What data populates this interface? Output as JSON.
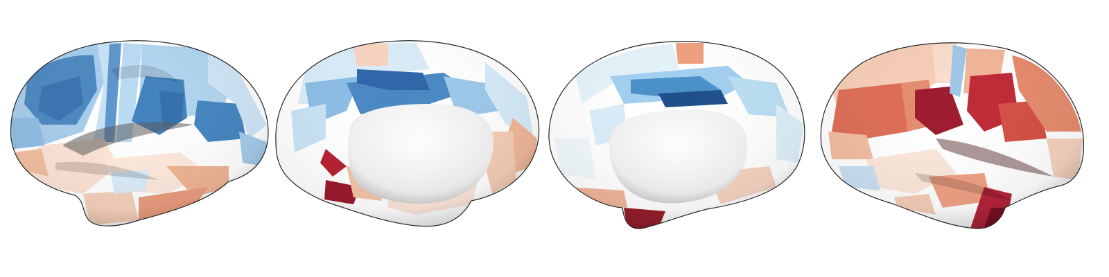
{
  "figure": {
    "views": [
      {
        "name": "left-lateral"
      },
      {
        "name": "left-medial"
      },
      {
        "name": "right-medial"
      },
      {
        "name": "right-lateral"
      }
    ],
    "colormap": {
      "name": "diverging-red-blue",
      "negative_strong": "#2a5d9a",
      "negative_mid": "#4f8cc4",
      "negative_light": "#a8d0ee",
      "neutral": "#ffffff",
      "positive_light": "#f4c2a8",
      "positive_mid": "#d8644b",
      "positive_strong": "#8e1328"
    }
  }
}
